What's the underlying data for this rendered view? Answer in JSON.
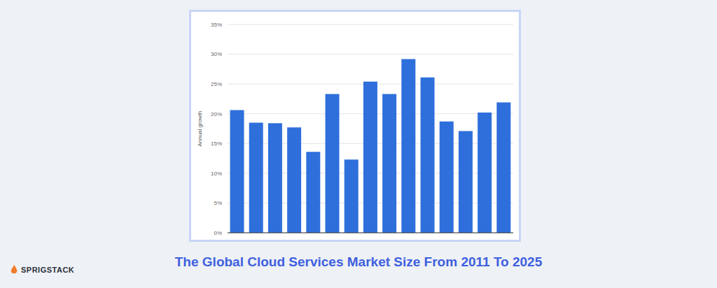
{
  "chart_data": {
    "type": "bar",
    "title": "The Global Cloud Services Market Size From 2011 To 2025",
    "y_label": "Annual growth",
    "categories": [
      null,
      null,
      null,
      null,
      null,
      null,
      null,
      null,
      null,
      null,
      null,
      null,
      null,
      null,
      null
    ],
    "values": [
      20.6,
      18.5,
      18.4,
      17.7,
      13.6,
      23.3,
      12.3,
      25.4,
      23.3,
      29.2,
      26.1,
      18.7,
      17.1,
      20.2,
      21.9
    ],
    "color": "#2e6fdc",
    "ylim": [
      0,
      35
    ],
    "yticks": [
      {
        "value": 0,
        "label": "0%"
      },
      {
        "value": 5,
        "label": "5%"
      },
      {
        "value": 10,
        "label": "10%"
      },
      {
        "value": 15,
        "label": "15%"
      },
      {
        "value": 20,
        "label": "20%"
      },
      {
        "value": 25,
        "label": "25%"
      },
      {
        "value": 30,
        "label": "30%"
      },
      {
        "value": 35,
        "label": "35%"
      }
    ],
    "grid": true,
    "tick_labels": "y"
  },
  "footer": {
    "logo": "SPRIGSTACK"
  }
}
